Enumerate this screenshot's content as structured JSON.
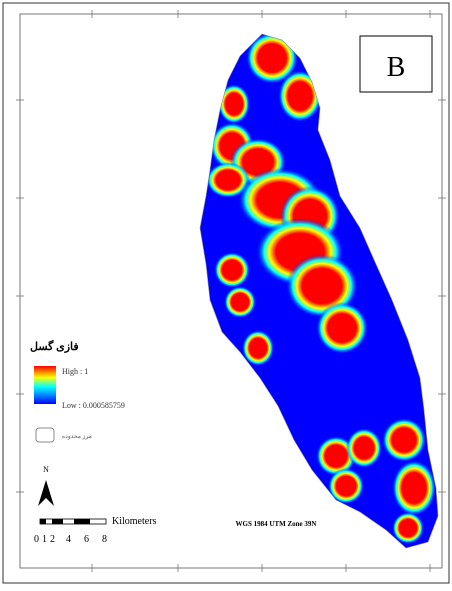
{
  "panel_label": "B",
  "legend": {
    "title": "فازی گسل",
    "high_label": "High : 1",
    "low_label": "Low : 0.000585759",
    "boundary_label": "مرز محدوده"
  },
  "north_label": "N",
  "scale_bar": {
    "unit_label": "Kilometers",
    "ticks": [
      "0",
      "1",
      "2",
      "4",
      "6",
      "8"
    ]
  },
  "projection_label": "WGS 1984 UTM Zone 39N",
  "colors": {
    "high": "#ff0000",
    "mid": "#ffff00",
    "mid2": "#00ffff",
    "low": "#0000ff"
  }
}
